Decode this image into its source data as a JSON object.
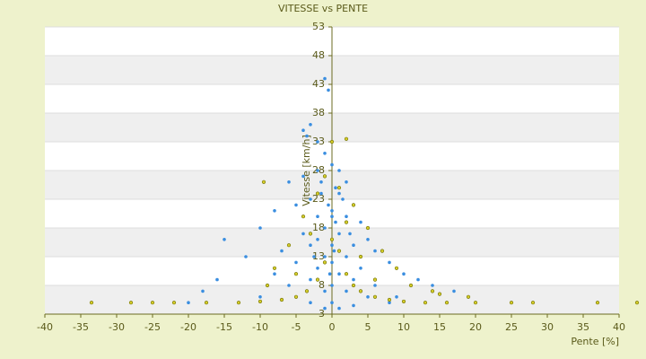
{
  "chart_data": {
    "type": "scatter",
    "title": "VITESSE vs PENTE",
    "x_label": "Pente [%]",
    "y_label": "Vitesse [km/h]",
    "xlim": [
      -40,
      40
    ],
    "xticks": [
      -40,
      -35,
      -30,
      -25,
      -20,
      -15,
      -10,
      -5,
      0,
      5,
      10,
      15,
      20,
      25,
      30,
      35,
      40
    ],
    "ylim": [
      3,
      53
    ],
    "yticks": [
      3,
      8,
      13,
      18,
      23,
      28,
      33,
      38,
      43,
      48,
      53
    ],
    "grid": "bands",
    "series": [
      {
        "color": "#3a8ee0",
        "x": [
          -1,
          -0.5,
          -3,
          -4,
          -3.5,
          -2,
          -1,
          0,
          1,
          -2,
          -4,
          -6,
          2,
          0.5,
          -1.5,
          -3,
          1.5,
          3,
          -5,
          -8,
          0,
          2,
          -2,
          4,
          -10,
          -1,
          1,
          -4,
          5,
          -15,
          0,
          -3,
          3,
          -7,
          6,
          -1,
          2,
          -12,
          8,
          0,
          -5,
          4,
          -2,
          10,
          -8,
          1,
          -16,
          -3,
          12,
          3,
          0,
          -6,
          14,
          -18,
          2,
          -1,
          17,
          5,
          -10,
          -3,
          0,
          8,
          -20,
          1,
          -1,
          3,
          9,
          6,
          -2,
          0.5,
          -0.5,
          1,
          -1.5,
          0,
          0.3,
          -0.3,
          2.5,
          -2.5
        ],
        "values": [
          44,
          42,
          36,
          35,
          34,
          33,
          31,
          29,
          28,
          28,
          27,
          26,
          26,
          25,
          24,
          23,
          23,
          22,
          22,
          21,
          21,
          20,
          20,
          19,
          18,
          18,
          17,
          17,
          16,
          16,
          15,
          15,
          15,
          14,
          14,
          13,
          13,
          13,
          12,
          12,
          12,
          11,
          11,
          10,
          10,
          10,
          9,
          9,
          9,
          9,
          8,
          8,
          8,
          7,
          7,
          7,
          7,
          6,
          6,
          5,
          5,
          5,
          5,
          4,
          4,
          4.5,
          6,
          8,
          16,
          19,
          22,
          24,
          26,
          20,
          14,
          10,
          17,
          13
        ]
      },
      {
        "color": "#d4cc2a",
        "x": [
          -33.5,
          -28,
          -25,
          -22,
          -17.5,
          -13,
          -10,
          -7,
          -5,
          -3.5,
          -2,
          -1,
          0,
          1,
          2,
          3,
          4,
          6,
          8,
          10,
          13,
          16,
          20,
          25,
          28,
          37,
          42.5,
          -4,
          -2,
          -1,
          1,
          3,
          5,
          7,
          9,
          -6,
          -8,
          -3,
          4,
          2,
          -5,
          6,
          11,
          -9,
          14,
          0,
          2,
          -9.5,
          15,
          19
        ],
        "values": [
          5,
          5,
          5,
          5,
          5,
          5,
          5.2,
          5.5,
          6,
          7,
          9,
          12,
          16,
          14,
          10,
          8,
          7,
          6,
          5.5,
          5.2,
          5,
          5,
          5,
          5,
          5,
          5,
          5,
          20,
          24,
          27,
          25,
          22,
          18,
          14,
          11,
          15,
          11,
          17,
          13,
          19,
          10,
          9,
          8,
          8,
          7,
          33,
          33.5,
          26,
          6.5,
          6
        ]
      }
    ]
  }
}
